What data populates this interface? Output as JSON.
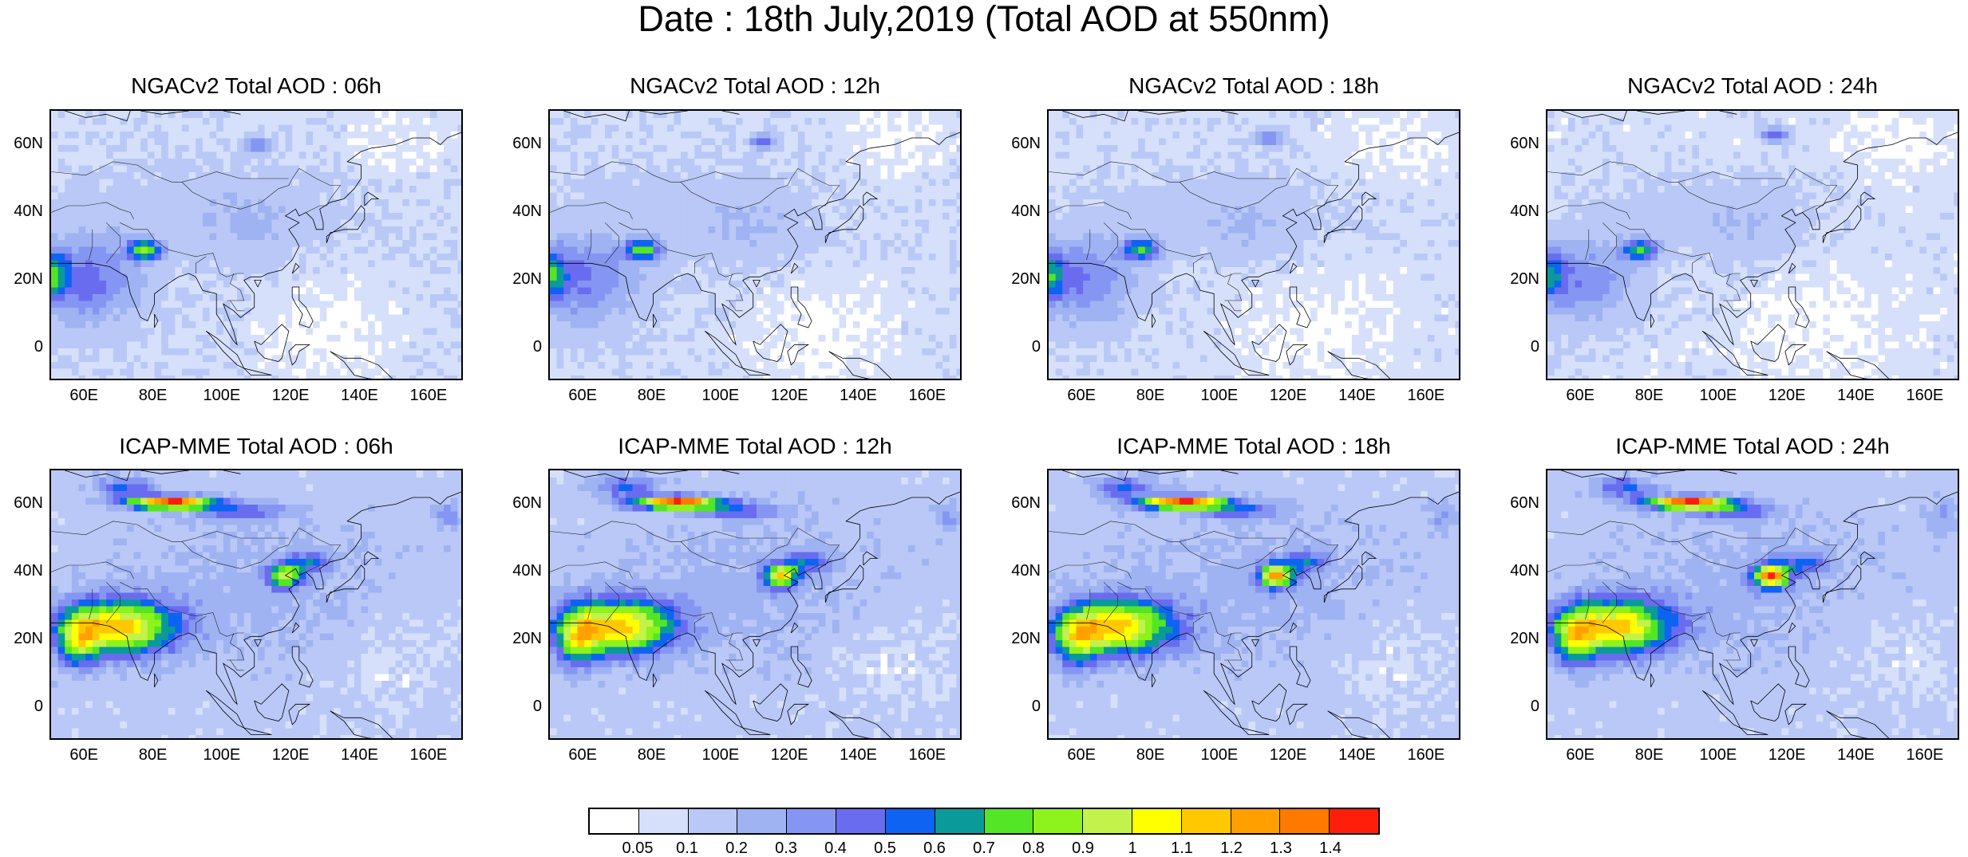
{
  "title": "Date : 18th July,2019 (Total AOD at 550nm)",
  "panels": [
    {
      "title": "NGACv2 Total AOD : 06h",
      "model": "NGACv2"
    },
    {
      "title": "NGACv2 Total AOD : 12h",
      "model": "NGACv2"
    },
    {
      "title": "NGACv2 Total AOD : 18h",
      "model": "NGACv2"
    },
    {
      "title": "NGACv2 Total AOD : 24h",
      "model": "NGACv2"
    },
    {
      "title": "ICAP-MME Total AOD : 06h",
      "model": "ICAP-MME"
    },
    {
      "title": "ICAP-MME Total AOD : 12h",
      "model": "ICAP-MME"
    },
    {
      "title": "ICAP-MME Total AOD : 18h",
      "model": "ICAP-MME"
    },
    {
      "title": "ICAP-MME Total AOD : 24h",
      "model": "ICAP-MME"
    }
  ],
  "x_ticks": [
    "60E",
    "80E",
    "100E",
    "120E",
    "140E",
    "160E"
  ],
  "y_ticks": [
    "60N",
    "40N",
    "20N",
    "0"
  ],
  "colorbar": {
    "labels": [
      "0.05",
      "0.1",
      "0.2",
      "0.3",
      "0.4",
      "0.5",
      "0.6",
      "0.7",
      "0.8",
      "0.9",
      "1",
      "1.1",
      "1.2",
      "1.3",
      "1.4"
    ],
    "colors": [
      "#ffffff",
      "#d6e0fa",
      "#b9c8f6",
      "#9fb3f3",
      "#8596f2",
      "#6a6cf0",
      "#0e63f2",
      "#0a9a9a",
      "#52e626",
      "#8ef21d",
      "#c3f24a",
      "#ffff00",
      "#ffc800",
      "#ffa000",
      "#ff7800",
      "#ff1e0a"
    ]
  }
}
